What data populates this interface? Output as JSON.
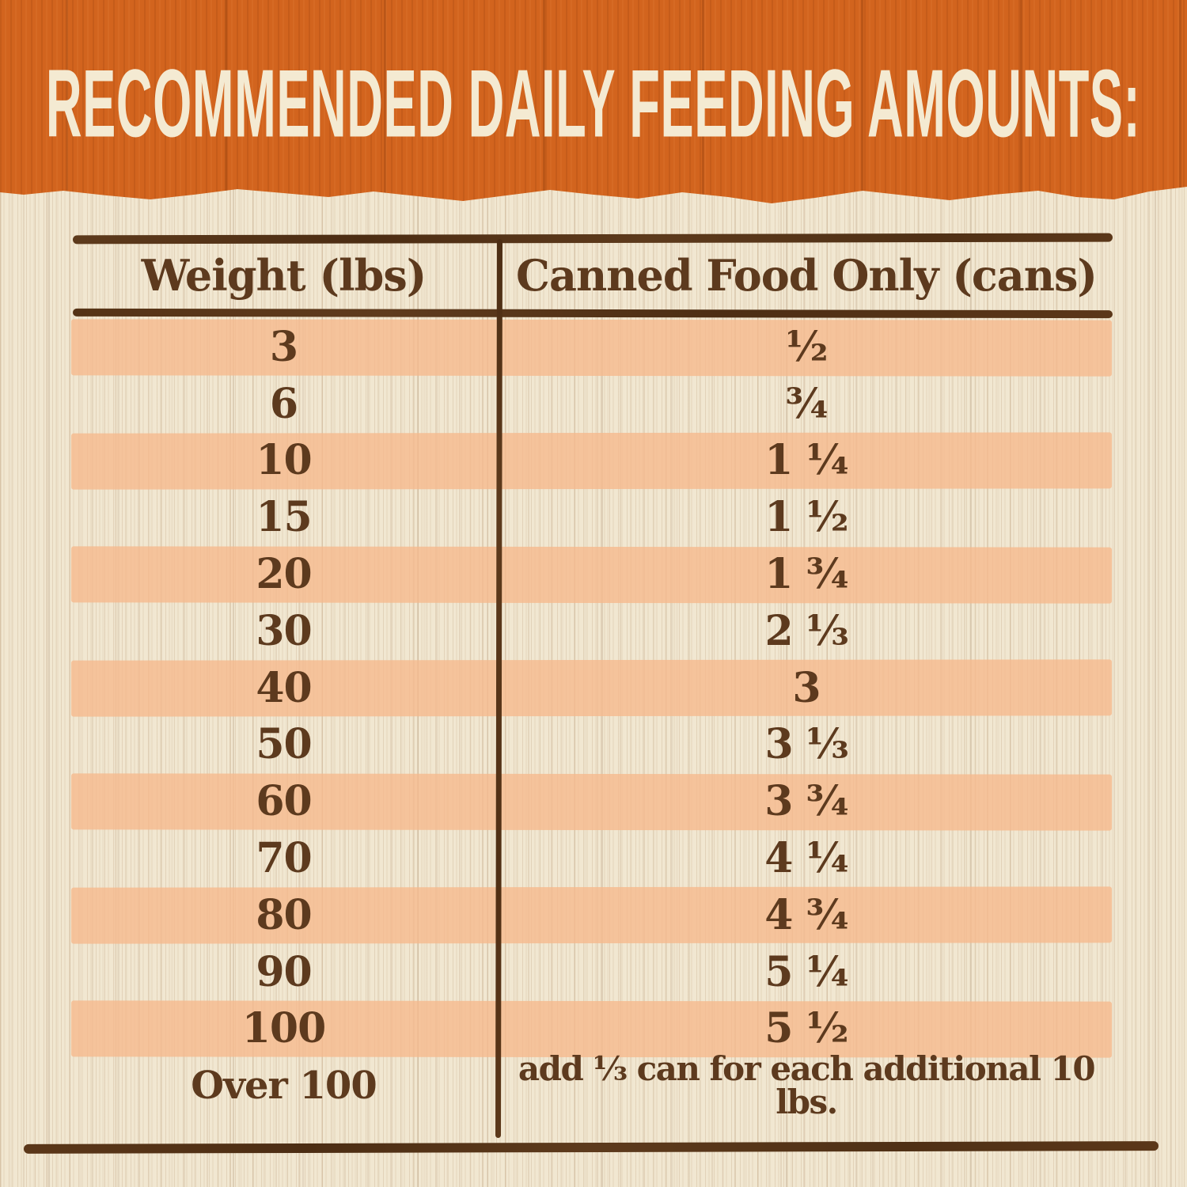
{
  "header": {
    "title": "RECOMMENDED DAILY FEEDING AMOUNTS:"
  },
  "chart_data": {
    "type": "table",
    "title": "RECOMMENDED DAILY FEEDING AMOUNTS:",
    "columns": [
      "Weight (lbs)",
      "Canned Food Only (cans)"
    ],
    "rows": [
      {
        "weight": "3",
        "cans": "½"
      },
      {
        "weight": "6",
        "cans": "¾"
      },
      {
        "weight": "10",
        "cans": "1 ¼"
      },
      {
        "weight": "15",
        "cans": "1 ½"
      },
      {
        "weight": "20",
        "cans": "1 ¾"
      },
      {
        "weight": "30",
        "cans": "2 ⅓"
      },
      {
        "weight": "40",
        "cans": "3"
      },
      {
        "weight": "50",
        "cans": "3 ⅓"
      },
      {
        "weight": "60",
        "cans": "3 ¾"
      },
      {
        "weight": "70",
        "cans": "4 ¼"
      },
      {
        "weight": "80",
        "cans": "4 ¾"
      },
      {
        "weight": "90",
        "cans": "5 ¼"
      },
      {
        "weight": "100",
        "cans": "5 ½"
      },
      {
        "weight": "Over 100",
        "cans": "add ⅓ can for each additional 10 lbs."
      }
    ],
    "layout_hints": {
      "striped_rows": "alternating starting with first data row",
      "grid": "hand-drawn rules: top, below header, bottom, single column divider"
    }
  },
  "colors": {
    "banner_orange": "#d2641e",
    "title_cream": "#f4ead2",
    "wood_cream": "#f1e7d1",
    "stripe_salmon": "#f6b88c",
    "text_brown": "#5d3a1e",
    "rule_brown": "#573419"
  }
}
